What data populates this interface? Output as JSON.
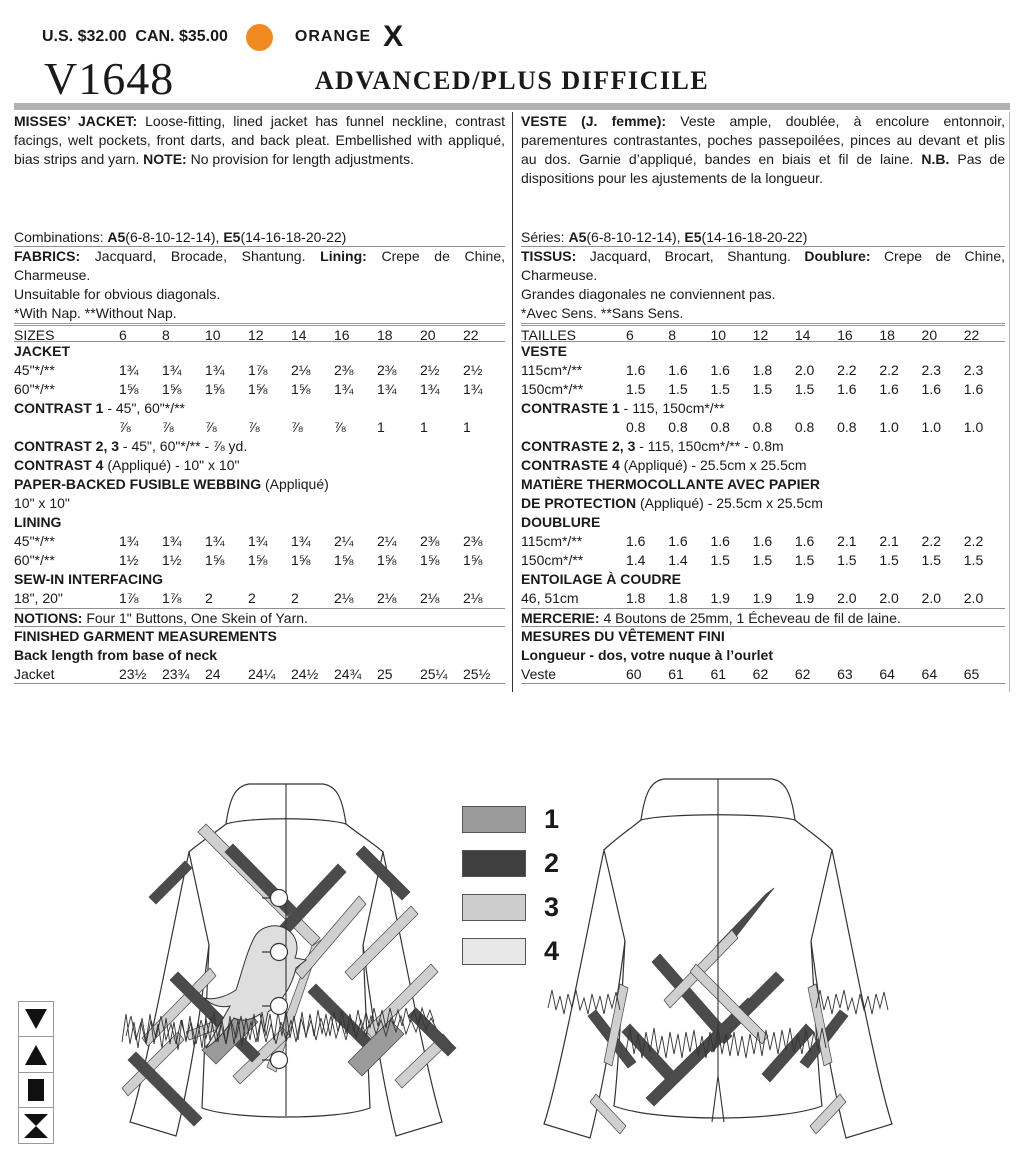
{
  "header": {
    "price": "U.S. $32.00  CAN. $35.00",
    "color_name": "ORANGE",
    "color_code": "X",
    "accent": "#F28B1F",
    "pattern_number": "V1648",
    "difficulty": "ADVANCED/PLUS DIFFICILE"
  },
  "en": {
    "description": [
      {
        "b": "MISSES’ JACKET: "
      },
      {
        "t": "Loose-fitting, lined jacket has funnel neckline, contrast facings, welt pockets, front darts, and back pleat. Embellished with appliqué, bias strips and yarn. "
      },
      {
        "b": "NOTE: "
      },
      {
        "t": "No provision for length adjustments."
      }
    ],
    "combinations": [
      {
        "t": "Combinations: "
      },
      {
        "b": "A5"
      },
      {
        "t": "(6-8-10-12-14), "
      },
      {
        "b": "E5"
      },
      {
        "t": "(14-16-18-20-22)"
      }
    ],
    "fabrics": [
      {
        "b": "FABRICS: "
      },
      {
        "t": "Jacquard, Brocade, Shantung. "
      },
      {
        "b": "Lining: "
      },
      {
        "t": "Crepe de Chine, Charmeuse."
      }
    ],
    "unsuitable": "Unsuitable for obvious diagonals.",
    "nap": "*With Nap. **Without Nap.",
    "sizes_label": "SIZES",
    "sizes": [
      "6",
      "8",
      "10",
      "12",
      "14",
      "16",
      "18",
      "20",
      "22"
    ],
    "garment_header": "JACKET",
    "row45": {
      "label": "45\"*/**",
      "values": [
        "1¾",
        "1¾",
        "1¾",
        "1⅞",
        "2⅛",
        "2⅜",
        "2⅜",
        "2½",
        "2½"
      ]
    },
    "row60": {
      "label": "60\"*/**",
      "values": [
        "1⅝",
        "1⅝",
        "1⅝",
        "1⅝",
        "1⅝",
        "1¾",
        "1¾",
        "1¾",
        "1¾"
      ]
    },
    "contrast1_head": [
      {
        "b": "CONTRAST 1"
      },
      {
        "t": " - 45\", 60\"*/**"
      }
    ],
    "contrast1_values": [
      "⅞",
      "⅞",
      "⅞",
      "⅞",
      "⅞",
      "⅞",
      "1",
      "1",
      "1"
    ],
    "contrast23": [
      {
        "b": "CONTRAST 2, 3"
      },
      {
        "t": " - 45\", 60\"*/** - ⅞ yd."
      }
    ],
    "contrast4": [
      {
        "b": "CONTRAST 4"
      },
      {
        "t": " (Appliqué) - 10\" x 10\""
      }
    ],
    "webbing1": [
      {
        "b": "PAPER-BACKED FUSIBLE WEBBING"
      },
      {
        "t": " (Appliqué)"
      }
    ],
    "webbing2": [
      {
        "t": "10\" x 10\""
      }
    ],
    "lining_header": "LINING",
    "lining45": {
      "label": "45\"*/**",
      "values": [
        "1¾",
        "1¾",
        "1¾",
        "1¾",
        "1¾",
        "2¼",
        "2¼",
        "2⅜",
        "2⅜"
      ]
    },
    "lining60": {
      "label": "60\"*/**",
      "values": [
        "1½",
        "1½",
        "1⅝",
        "1⅝",
        "1⅝",
        "1⅝",
        "1⅝",
        "1⅝",
        "1⅝"
      ]
    },
    "interfacing_header": "SEW-IN INTERFACING",
    "interfacing_row": {
      "label": "18\", 20\"",
      "values": [
        "1⅞",
        "1⅞",
        "2",
        "2",
        "2",
        "2⅛",
        "2⅛",
        "2⅛",
        "2⅛"
      ]
    },
    "notions": [
      {
        "b": "NOTIONS:"
      },
      {
        "t": " Four 1\" Buttons, One Skein of Yarn."
      }
    ],
    "finished_header": "FINISHED GARMENT MEASUREMENTS",
    "finished_sub": "Back length from base of neck",
    "finished_row": {
      "label": "Jacket",
      "values": [
        "23½",
        "23¾",
        "24",
        "24¼",
        "24½",
        "24¾",
        "25",
        "25¼",
        "25½"
      ]
    }
  },
  "fr": {
    "description": [
      {
        "b": "VESTE (J. femme): "
      },
      {
        "t": "Veste ample, doublée, à encolure entonnoir, parementures contrastantes, poches passepoilées, pinces au devant et plis au dos. Garnie d’appliqué, bandes en biais et fil de laine. "
      },
      {
        "b": "N.B. "
      },
      {
        "t": "Pas de dispositions pour les ajustements de la longueur."
      }
    ],
    "combinations": [
      {
        "t": "Séries: "
      },
      {
        "b": "A5"
      },
      {
        "t": "(6-8-10-12-14), "
      },
      {
        "b": "E5"
      },
      {
        "t": "(14-16-18-20-22)"
      }
    ],
    "fabrics": [
      {
        "b": "TISSUS: "
      },
      {
        "t": "Jacquard, Brocart, Shantung. "
      },
      {
        "b": "Doublure: "
      },
      {
        "t": "Crepe de Chine, Charmeuse."
      }
    ],
    "unsuitable": "Grandes diagonales ne conviennent pas.",
    "nap": "*Avec Sens. **Sans Sens.",
    "sizes_label": "TAILLES",
    "sizes": [
      "6",
      "8",
      "10",
      "12",
      "14",
      "16",
      "18",
      "20",
      "22"
    ],
    "garment_header": "VESTE",
    "row45": {
      "label": "115cm*/**",
      "values": [
        "1.6",
        "1.6",
        "1.6",
        "1.8",
        "2.0",
        "2.2",
        "2.2",
        "2.3",
        "2.3"
      ]
    },
    "row60": {
      "label": "150cm*/**",
      "values": [
        "1.5",
        "1.5",
        "1.5",
        "1.5",
        "1.5",
        "1.6",
        "1.6",
        "1.6",
        "1.6"
      ]
    },
    "contrast1_head": [
      {
        "b": "CONTRASTE 1"
      },
      {
        "t": " - 115, 150cm*/**"
      }
    ],
    "contrast1_values": [
      "0.8",
      "0.8",
      "0.8",
      "0.8",
      "0.8",
      "0.8",
      "1.0",
      "1.0",
      "1.0"
    ],
    "contrast23": [
      {
        "b": "CONTRASTE 2, 3"
      },
      {
        "t": " - 115, 150cm*/** - 0.8m"
      }
    ],
    "contrast4": [
      {
        "b": "CONTRASTE 4"
      },
      {
        "t": " (Appliqué) - 25.5cm x 25.5cm"
      }
    ],
    "webbing1": [
      {
        "b": "MATIÈRE THERMOCOLLANTE AVEC PAPIER"
      }
    ],
    "webbing2": [
      {
        "b": "DE PROTECTION"
      },
      {
        "t": " (Appliqué) - 25.5cm x 25.5cm"
      }
    ],
    "lining_header": "DOUBLURE",
    "lining45": {
      "label": "115cm*/**",
      "values": [
        "1.6",
        "1.6",
        "1.6",
        "1.6",
        "1.6",
        "2.1",
        "2.1",
        "2.2",
        "2.2"
      ]
    },
    "lining60": {
      "label": "150cm*/**",
      "values": [
        "1.4",
        "1.4",
        "1.5",
        "1.5",
        "1.5",
        "1.5",
        "1.5",
        "1.5",
        "1.5"
      ]
    },
    "interfacing_header": "ENTOILAGE À COUDRE",
    "interfacing_row": {
      "label": "46, 51cm",
      "values": [
        "1.8",
        "1.8",
        "1.9",
        "1.9",
        "1.9",
        "2.0",
        "2.0",
        "2.0",
        "2.0"
      ]
    },
    "notions": [
      {
        "b": "MERCERIE:"
      },
      {
        "t": " 4 Boutons de 25mm, 1 Écheveau de fil de laine."
      }
    ],
    "finished_header": "MESURES DU VÊTEMENT FINI",
    "finished_sub": "Longueur - dos, votre nuque à l’ourlet",
    "finished_row": {
      "label": "Veste",
      "values": [
        "60",
        "61",
        "61",
        "62",
        "62",
        "63",
        "64",
        "64",
        "65"
      ]
    }
  },
  "legend": {
    "items": [
      {
        "num": "1",
        "color": "#9b9b9b"
      },
      {
        "num": "2",
        "color": "#3f3f3f"
      },
      {
        "num": "3",
        "color": "#cdcdcd"
      },
      {
        "num": "4",
        "color": "#e7e7e7"
      }
    ]
  },
  "symbols": [
    "triangle-down",
    "triangle-up",
    "square",
    "hourglass"
  ]
}
